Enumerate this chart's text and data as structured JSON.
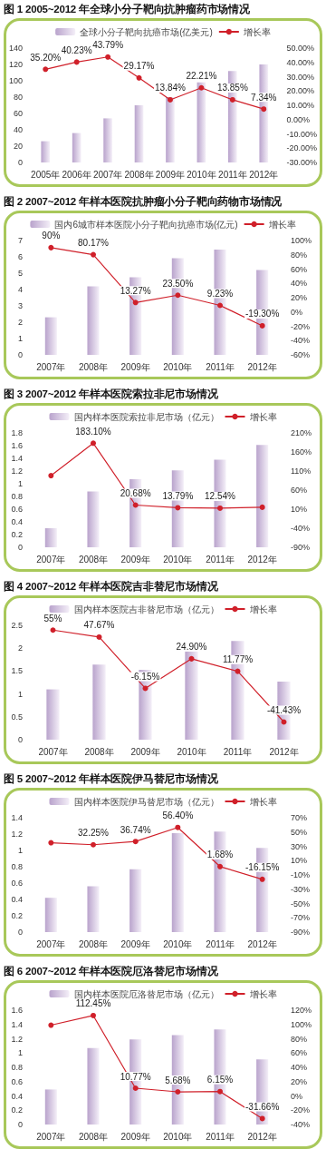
{
  "chart_data": [
    {
      "type": "bar",
      "title": "图 1 2005~2012 年全球小分子靶向抗肿瘤药市场情况",
      "categories": [
        "2005年",
        "2006年",
        "2007年",
        "2008年",
        "2009年",
        "2010年",
        "2011年",
        "2012年"
      ],
      "series": [
        {
          "name": "全球小分子靶向抗癌市场(亿美元)",
          "color": "#b9a3cc",
          "values": [
            26,
            36,
            54,
            70,
            80,
            98,
            112,
            120
          ]
        },
        {
          "type": "line",
          "axis": "y2",
          "name": "增长率",
          "color": "#d0202a",
          "values": [
            35.2,
            40.23,
            43.79,
            29.17,
            13.84,
            22.21,
            13.85,
            7.34
          ],
          "value_labels": [
            "35.20%",
            "40.23%",
            "43.79%",
            "29.17%",
            "13.84%",
            "22.21%",
            "13.85%",
            "7.34%"
          ]
        }
      ],
      "ylim": [
        0,
        140
      ],
      "yticks": [
        0,
        20,
        40,
        60,
        80,
        100,
        120,
        140
      ],
      "y2lim": [
        -30,
        50
      ],
      "y2ticks": [
        {
          "value": -30,
          "label": "-30.00%"
        },
        {
          "value": -20,
          "label": "-20.00%"
        },
        {
          "value": -10,
          "label": "-10.00%"
        },
        {
          "value": 0,
          "label": "0.00%"
        },
        {
          "value": 10,
          "label": "10.00%"
        },
        {
          "value": 20,
          "label": "20.00%"
        },
        {
          "value": 30,
          "label": "30.00%"
        },
        {
          "value": 40,
          "label": "40.00%"
        },
        {
          "value": 50,
          "label": "50.00%"
        }
      ],
      "legend": "top",
      "marker": "circle",
      "grid": false
    },
    {
      "type": "bar",
      "title": "图 2 2007~2012 年样本医院抗肿瘤小分子靶向药物市场情况",
      "categories": [
        "2007年",
        "2008年",
        "2009年",
        "2010年",
        "2011年",
        "2012年"
      ],
      "series": [
        {
          "name": "国内6城市样本医院小分子靶向抗癌市场(亿元)",
          "color": "#b9a3cc",
          "values": [
            2.3,
            4.2,
            4.75,
            5.92,
            6.44,
            5.2
          ]
        },
        {
          "type": "line",
          "axis": "y2",
          "name": "增长率",
          "color": "#d0202a",
          "values": [
            90,
            80.17,
            13.27,
            23.5,
            9.23,
            -19.3
          ],
          "value_labels": [
            "90%",
            "80.17%",
            "13.27%",
            "23.50%",
            "9.23%",
            "-19.30%"
          ]
        }
      ],
      "ylim": [
        0,
        7
      ],
      "yticks": [
        0,
        1,
        2,
        3,
        4,
        5,
        6,
        7
      ],
      "y2lim": [
        -60,
        100
      ],
      "y2ticks": [
        {
          "value": -60,
          "label": "-60%"
        },
        {
          "value": -40,
          "label": "-40%"
        },
        {
          "value": -20,
          "label": "-20%"
        },
        {
          "value": 0,
          "label": "0%"
        },
        {
          "value": 20,
          "label": "20%"
        },
        {
          "value": 40,
          "label": "40%"
        },
        {
          "value": 60,
          "label": "60%"
        },
        {
          "value": 80,
          "label": "80%"
        },
        {
          "value": 100,
          "label": "100%"
        }
      ],
      "legend": "top",
      "marker": "circle",
      "grid": false
    },
    {
      "type": "bar",
      "title": "图 3 2007~2012 年样本医院索拉非尼市场情况",
      "categories": [
        "2007年",
        "2008年",
        "2009年",
        "2010年",
        "2011年",
        "2012年"
      ],
      "series": [
        {
          "name": "国内样本医院索拉非尼市场（亿元）",
          "color": "#b9a3cc",
          "values": [
            0.3,
            0.88,
            1.07,
            1.21,
            1.38,
            1.61
          ]
        },
        {
          "type": "line",
          "axis": "y2",
          "name": "增长率",
          "color": "#d0202a",
          "values": [
            98,
            183.1,
            20.68,
            13.79,
            12.54,
            15
          ],
          "value_labels": [
            null,
            "183.10%",
            "20.68%",
            "13.79%",
            "12.54%",
            null
          ]
        }
      ],
      "ylim": [
        0,
        1.8
      ],
      "yticks": [
        0,
        0.2,
        0.4,
        0.6,
        0.8,
        1,
        1.2,
        1.4,
        1.6,
        1.8
      ],
      "y2lim": [
        -90,
        210
      ],
      "y2ticks": [
        {
          "value": -90,
          "label": "-90%"
        },
        {
          "value": -40,
          "label": "-40%"
        },
        {
          "value": 10,
          "label": "10%"
        },
        {
          "value": 60,
          "label": "60%"
        },
        {
          "value": 110,
          "label": "110%"
        },
        {
          "value": 160,
          "label": "160%"
        },
        {
          "value": 210,
          "label": "210%"
        }
      ],
      "legend": "top",
      "marker": "circle",
      "grid": false
    },
    {
      "type": "bar",
      "title": "图 4 2007~2012 年样本医院吉非替尼市场情况",
      "categories": [
        "2007年",
        "2008年",
        "2009年",
        "2010年",
        "2011年",
        "2012年"
      ],
      "series": [
        {
          "name": "国内样本医院吉非替尼市场（亿元）",
          "color": "#b9a3cc",
          "values": [
            1.1,
            1.64,
            1.53,
            1.93,
            2.16,
            1.27
          ]
        },
        {
          "type": "line",
          "axis": "y2",
          "name": "增长率",
          "color": "#d0202a",
          "values": [
            55,
            47.67,
            -6.15,
            24.9,
            11.77,
            -41.43
          ],
          "value_labels": [
            "55%",
            "47.67%",
            "-6.15%",
            "24.90%",
            "11.77%",
            "-41.43%"
          ]
        }
      ],
      "ylim": [
        0,
        2.5
      ],
      "yticks": [
        0,
        0.5,
        1,
        1.5,
        2,
        2.5
      ],
      "legend": "top",
      "marker": "circle",
      "grid": false
    },
    {
      "type": "bar",
      "title": "图 5 2007~2012 年样本医院伊马替尼市场情况",
      "categories": [
        "2007年",
        "2008年",
        "2009年",
        "2010年",
        "2011年",
        "2012年"
      ],
      "series": [
        {
          "name": "国内样本医院伊马替尼市场（亿元）",
          "color": "#b9a3cc",
          "values": [
            0.42,
            0.56,
            0.77,
            1.21,
            1.23,
            1.03
          ]
        },
        {
          "type": "line",
          "axis": "y2",
          "name": "增长率",
          "color": "#d0202a",
          "values": [
            35,
            32.25,
            36.74,
            56.4,
            1.68,
            -16.15
          ],
          "value_labels": [
            null,
            "32.25%",
            "36.74%",
            "56.40%",
            "1.68%",
            "-16.15%"
          ]
        }
      ],
      "ylim": [
        0,
        1.4
      ],
      "yticks": [
        0,
        0.2,
        0.4,
        0.6,
        0.8,
        1,
        1.2,
        1.4
      ],
      "y2lim": [
        -90,
        70
      ],
      "y2ticks": [
        {
          "value": -90,
          "label": "-90%"
        },
        {
          "value": -70,
          "label": "-70%"
        },
        {
          "value": -50,
          "label": "-50%"
        },
        {
          "value": -30,
          "label": "-30%"
        },
        {
          "value": -10,
          "label": "-10%"
        },
        {
          "value": 10,
          "label": "10%"
        },
        {
          "value": 30,
          "label": "30%"
        },
        {
          "value": 50,
          "label": "50%"
        },
        {
          "value": 70,
          "label": "70%"
        }
      ],
      "legend": "top",
      "marker": "circle",
      "grid": false
    },
    {
      "type": "bar",
      "title": "图 6 2007~2012 年样本医院厄洛替尼市场情况",
      "categories": [
        "2007年",
        "2008年",
        "2009年",
        "2010年",
        "2011年",
        "2012年"
      ],
      "series": [
        {
          "name": "国内样本医院厄洛替尼市场（亿元）",
          "color": "#b9a3cc",
          "values": [
            0.49,
            1.07,
            1.19,
            1.25,
            1.33,
            0.91
          ]
        },
        {
          "type": "line",
          "axis": "y2",
          "name": "增长率",
          "color": "#d0202a",
          "values": [
            99,
            112.45,
            10.77,
            5.68,
            6.15,
            -31.66
          ],
          "value_labels": [
            null,
            "112.45%",
            "10.77%",
            "5.68%",
            "6.15%",
            "-31.66%"
          ]
        }
      ],
      "ylim": [
        0,
        1.6
      ],
      "yticks": [
        0,
        0.2,
        0.4,
        0.6,
        0.8,
        1,
        1.2,
        1.4,
        1.6
      ],
      "y2lim": [
        -40,
        120
      ],
      "y2ticks": [
        {
          "value": -40,
          "label": "-40%"
        },
        {
          "value": -20,
          "label": "-20%"
        },
        {
          "value": 0,
          "label": "0%"
        },
        {
          "value": 20,
          "label": "20%"
        },
        {
          "value": 40,
          "label": "40%"
        },
        {
          "value": 60,
          "label": "60%"
        },
        {
          "value": 80,
          "label": "80%"
        },
        {
          "value": 100,
          "label": "100%"
        },
        {
          "value": 120,
          "label": "120%"
        }
      ],
      "legend": "top",
      "marker": "circle",
      "grid": false
    }
  ]
}
